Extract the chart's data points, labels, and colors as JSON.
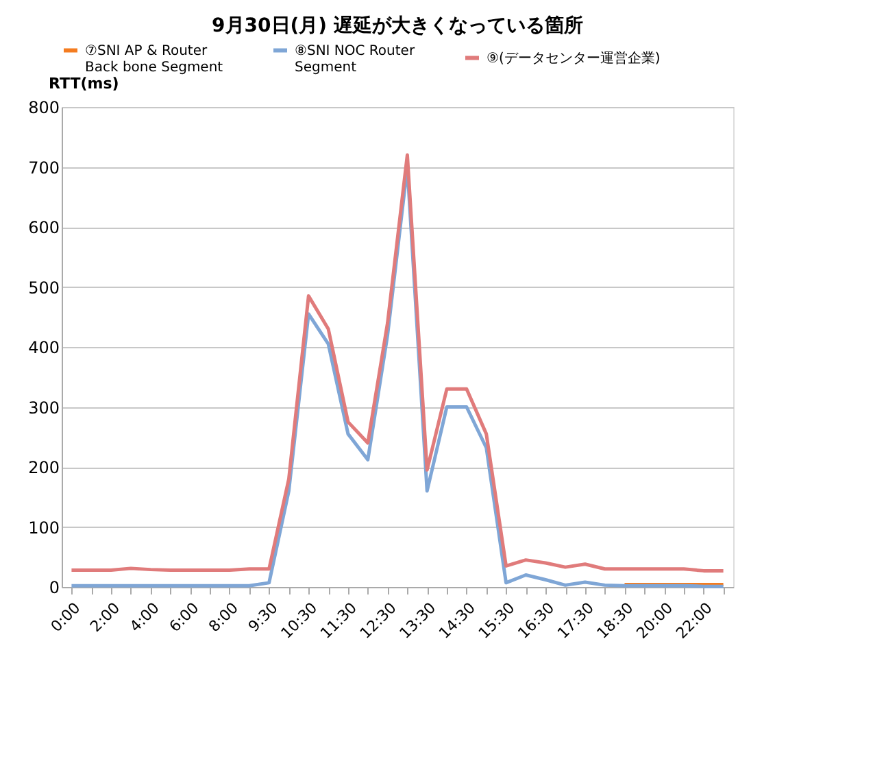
{
  "chart_data": {
    "type": "line",
    "title": "9月30日(月)  遅延が大きくなっている箇所",
    "ylabel": "RTT(ms)",
    "categories": [
      "0:00",
      null,
      "2:00",
      null,
      "4:00",
      null,
      "6:00",
      null,
      "8:00",
      null,
      "9:30",
      null,
      "10:30",
      null,
      "11:30",
      null,
      "12:30",
      null,
      "13:30",
      null,
      "14:30",
      null,
      "15:30",
      null,
      "16:30",
      null,
      "17:30",
      null,
      "18:30",
      null,
      "20:00",
      null,
      "22:00",
      null
    ],
    "series": [
      {
        "name": "⑦SNI AP & Router\nBack bone Segment",
        "color": "#f47c20",
        "values": [
          null,
          null,
          null,
          null,
          null,
          null,
          null,
          null,
          null,
          null,
          null,
          null,
          null,
          null,
          null,
          null,
          null,
          null,
          null,
          null,
          null,
          null,
          null,
          null,
          null,
          null,
          null,
          null,
          4,
          4,
          4,
          4,
          4,
          4
        ]
      },
      {
        "name": "⑧SNI NOC Router\nSegment",
        "color": "#7fa6d6",
        "values": [
          2,
          2,
          2,
          2,
          2,
          2,
          2,
          2,
          2,
          2,
          7,
          160,
          455,
          405,
          255,
          212,
          420,
          700,
          160,
          300,
          300,
          232,
          7,
          20,
          12,
          3,
          8,
          3,
          2,
          2,
          2,
          2,
          1,
          1
        ]
      },
      {
        "name": "⑨(データセンター運営企業)",
        "color": "#e07b7b",
        "values": [
          28,
          28,
          28,
          31,
          29,
          28,
          28,
          28,
          28,
          30,
          30,
          180,
          485,
          430,
          275,
          240,
          440,
          720,
          195,
          330,
          330,
          255,
          35,
          45,
          40,
          33,
          38,
          30,
          30,
          30,
          30,
          30,
          27,
          27
        ]
      }
    ],
    "ylim": [
      0,
      800
    ],
    "yticks": [
      0,
      100,
      200,
      300,
      400,
      500,
      600,
      700,
      800
    ],
    "grid": "y",
    "legend": "top",
    "marker": "none",
    "line_style": "solid"
  }
}
